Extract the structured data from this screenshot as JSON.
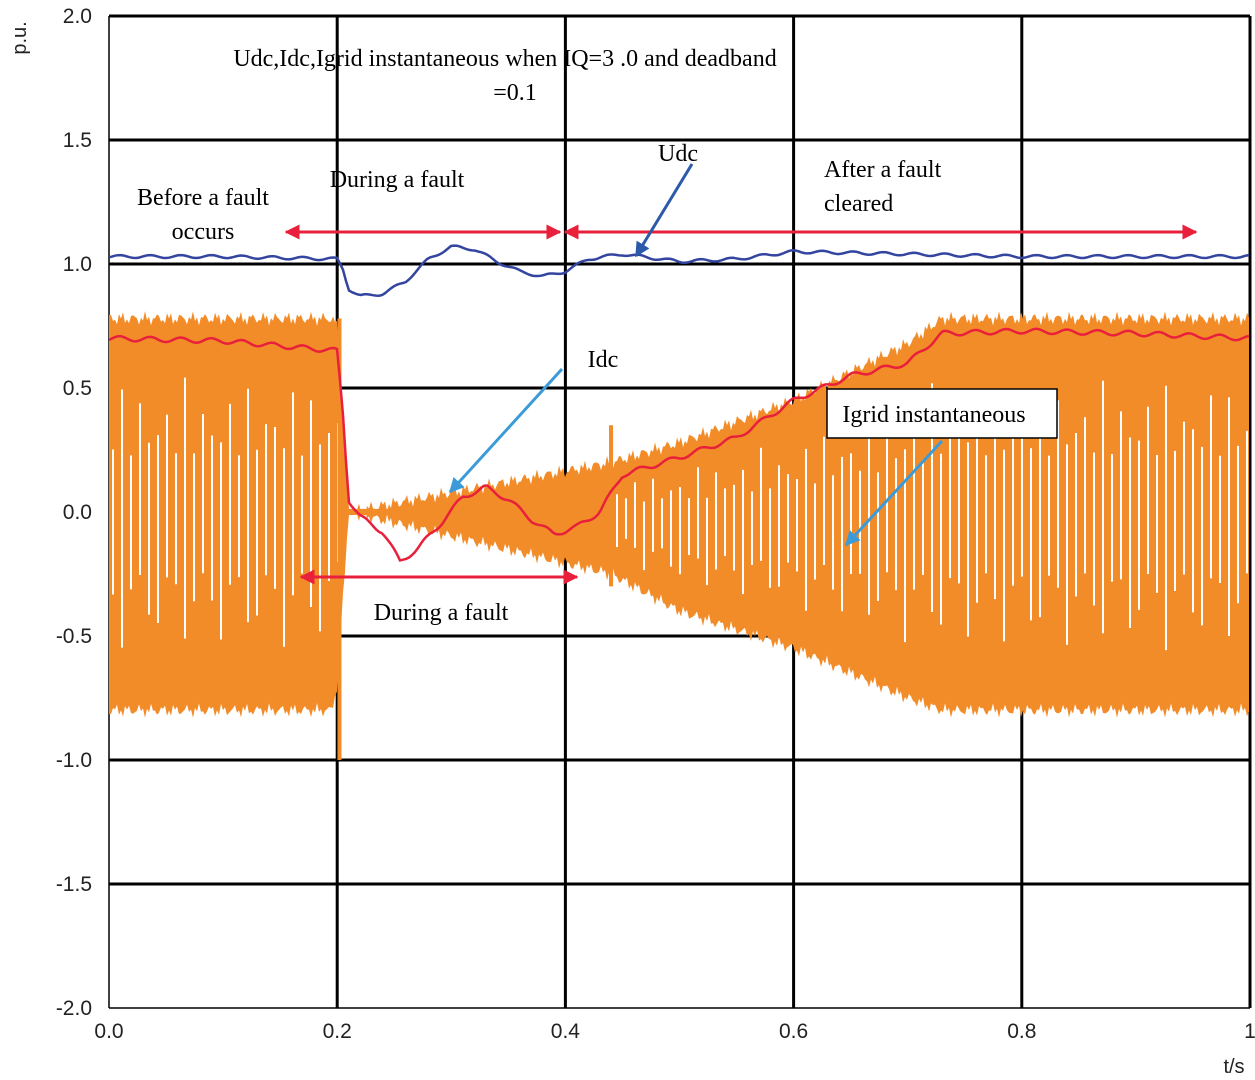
{
  "chart_data": {
    "type": "line",
    "title": "Udc,Idc,Igrid instantaneous when IQ=3 .0 and deadband",
    "title_line2": "=0.1",
    "xlabel": "t/s",
    "ylabel": "p.u.",
    "xlim": [
      0.0,
      1.0
    ],
    "ylim": [
      -2.0,
      2.0
    ],
    "x_ticks": [
      "0.0",
      "0.2",
      "0.4",
      "0.6",
      "0.8",
      "1"
    ],
    "y_ticks": [
      "2.0",
      "1.5",
      "1.0",
      "0.5",
      "0.0",
      "-0.5",
      "-1.0",
      "-1.5",
      "-2.0"
    ],
    "grid": true,
    "colors": {
      "udc": "#3445a0",
      "idc": "#e8203c",
      "igrid": "#f28c28",
      "arrow_red": "#e8203c",
      "arrow_blue": "#3a9bd8",
      "grid": "#000000"
    },
    "series": [
      {
        "name": "Udc",
        "x": [
          0.0,
          0.1,
          0.2,
          0.205,
          0.21,
          0.22,
          0.24,
          0.26,
          0.28,
          0.3,
          0.32,
          0.34,
          0.36,
          0.38,
          0.4,
          0.42,
          0.45,
          0.5,
          0.55,
          0.6,
          0.7,
          0.8,
          0.9,
          1.0
        ],
        "y": [
          1.03,
          1.03,
          1.02,
          0.98,
          0.9,
          0.87,
          0.88,
          0.93,
          1.02,
          1.07,
          1.06,
          1.01,
          0.97,
          0.95,
          0.97,
          1.02,
          1.04,
          1.01,
          1.02,
          1.05,
          1.04,
          1.03,
          1.03,
          1.03
        ]
      },
      {
        "name": "Idc",
        "x": [
          0.0,
          0.1,
          0.2,
          0.205,
          0.21,
          0.22,
          0.24,
          0.255,
          0.27,
          0.29,
          0.31,
          0.33,
          0.35,
          0.37,
          0.39,
          0.41,
          0.43,
          0.45,
          0.5,
          0.55,
          0.6,
          0.65,
          0.7,
          0.73,
          0.8,
          0.9,
          1.0
        ],
        "y": [
          0.7,
          0.69,
          0.65,
          0.4,
          0.05,
          -0.02,
          -0.08,
          -0.2,
          -0.15,
          -0.05,
          0.06,
          0.1,
          0.05,
          -0.03,
          -0.09,
          -0.06,
          0.0,
          0.15,
          0.22,
          0.3,
          0.45,
          0.55,
          0.6,
          0.72,
          0.73,
          0.72,
          0.7
        ]
      },
      {
        "name": "Igrid instantaneous",
        "envelope_x": [
          0.0,
          0.195,
          0.2,
          0.21,
          0.44,
          0.5,
          0.6,
          0.7,
          0.73,
          1.0
        ],
        "envelope_upper": [
          0.78,
          0.78,
          0.75,
          0.0,
          0.2,
          0.28,
          0.45,
          0.68,
          0.78,
          0.78
        ],
        "envelope_lower": [
          -0.8,
          -0.8,
          -0.7,
          0.0,
          -0.25,
          -0.4,
          -0.55,
          -0.75,
          -0.8,
          -0.8
        ]
      }
    ],
    "annotations": {
      "before_fault": [
        "Before a fault",
        "occurs"
      ],
      "during_fault_top": "During a fault",
      "after_fault": [
        "After  a  fault",
        "cleared"
      ],
      "during_fault_bottom": "During a fault",
      "udc_label": "Udc",
      "idc_label": "Idc",
      "igrid_label": "Igrid instantaneous"
    }
  }
}
